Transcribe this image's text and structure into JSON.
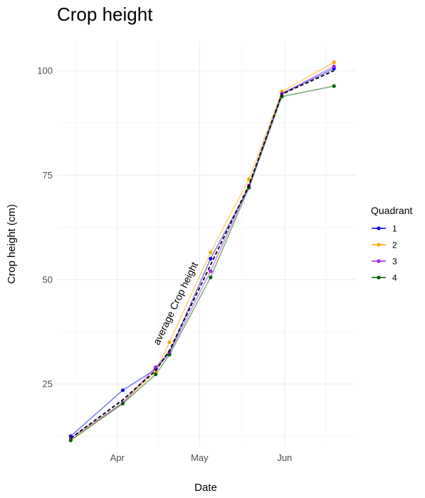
{
  "chart_data": {
    "type": "line",
    "title": "Crop height",
    "xlabel": "Date",
    "ylabel": "Crop height (cm)",
    "x_axis_type": "date",
    "xlim": [
      "2023-03-10",
      "2023-06-27"
    ],
    "ylim": [
      10,
      107
    ],
    "x_ticks": [
      {
        "date": "2023-04-01",
        "label": "Apr"
      },
      {
        "date": "2023-05-01",
        "label": "May"
      },
      {
        "date": "2023-06-01",
        "label": "Jun"
      }
    ],
    "y_ticks": [
      25,
      50,
      75,
      100
    ],
    "grid": true,
    "legend": {
      "title": "Quadrant",
      "position": "right"
    },
    "x": [
      "2023-03-15",
      "2023-04-03",
      "2023-04-15",
      "2023-04-20",
      "2023-05-05",
      "2023-05-19",
      "2023-05-31",
      "2023-06-19"
    ],
    "series": [
      {
        "name": "1",
        "color": "#0000ff",
        "values": [
          12.5,
          23.5,
          28.5,
          32.5,
          55.0,
          72.0,
          94.5,
          100.5
        ]
      },
      {
        "name": "2",
        "color": "#ffa500",
        "values": [
          11.5,
          20.5,
          28.0,
          35.0,
          56.5,
          74.0,
          95.0,
          102.0
        ]
      },
      {
        "name": "3",
        "color": "#a020f0",
        "values": [
          12.0,
          20.5,
          29.0,
          32.5,
          52.0,
          72.5,
          94.5,
          101.0
        ]
      },
      {
        "name": "4",
        "color": "#006400",
        "values": [
          11.5,
          20.3,
          27.3,
          32.0,
          50.5,
          72.0,
          93.8,
          96.3
        ]
      }
    ],
    "average_line": {
      "label": "average Crop height",
      "color": "#000000",
      "dash": "dashed",
      "values": [
        12.0,
        21.2,
        28.2,
        33.0,
        53.5,
        72.6,
        94.4,
        100.0
      ]
    }
  }
}
